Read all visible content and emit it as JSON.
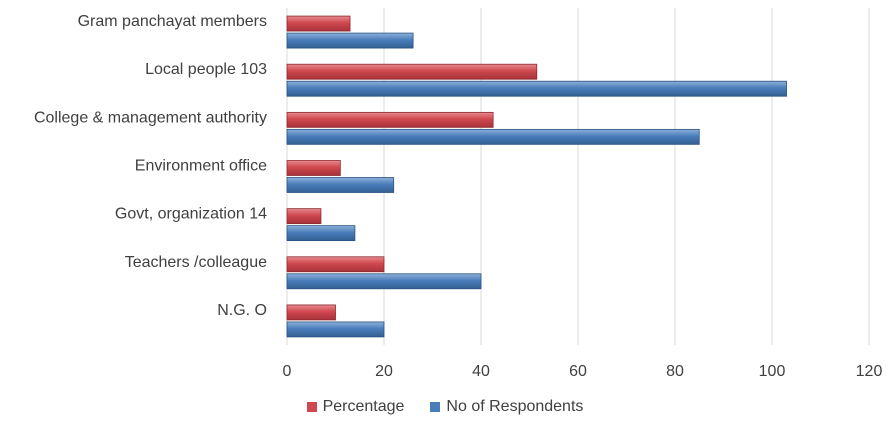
{
  "chart_data": {
    "type": "bar",
    "orientation": "horizontal",
    "categories": [
      "Gram panchayat members",
      "Local people 103",
      "College & management authority",
      "Environment office",
      "Govt, organization 14",
      "Teachers /colleague",
      "N.G. O"
    ],
    "series": [
      {
        "name": "Percentage",
        "color": "#D0484F",
        "values": [
          13,
          51.5,
          42.5,
          11,
          7,
          20,
          10
        ]
      },
      {
        "name": "No of Respondents",
        "color": "#4A7EBB",
        "values": [
          26,
          103,
          85,
          22,
          14,
          40,
          20
        ]
      }
    ],
    "xlim": [
      0,
      120
    ],
    "xticks": [
      0,
      20,
      40,
      60,
      80,
      100,
      120
    ],
    "grid": true,
    "legend_position": "bottom"
  }
}
